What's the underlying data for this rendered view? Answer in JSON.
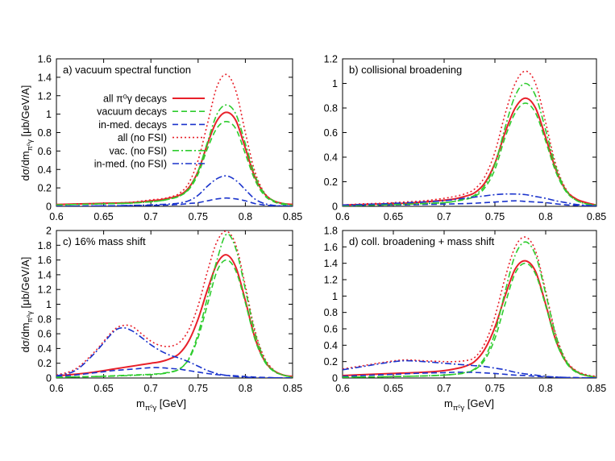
{
  "figure": {
    "shared_ylabel": "dσ/dm",
    "shared_ylabel_sub": "π⁰γ",
    "shared_ylabel_unit": " [μb/GeV/A]",
    "shared_xlabel": "m",
    "shared_xlabel_sub": "π⁰γ",
    "shared_xlabel_unit": " [GeV]"
  },
  "legend": {
    "entries": [
      {
        "label": "all π⁰γ decays",
        "color": "#e8202a",
        "dash": "solid"
      },
      {
        "label": "vacuum decays",
        "color": "#2ecc2e",
        "dash": "dashed"
      },
      {
        "label": "in-med. decays",
        "color": "#1a33cc",
        "dash": "dashed"
      },
      {
        "label": "all (no FSI)",
        "color": "#e8202a",
        "dash": "dotted"
      },
      {
        "label": "vac. (no FSI)",
        "color": "#2ecc2e",
        "dash": "dashdot"
      },
      {
        "label": "in-med. (no FSI)",
        "color": "#1a33cc",
        "dash": "dashdot"
      }
    ]
  },
  "chart_data": [
    {
      "type": "line",
      "title": "a) vacuum spectral function",
      "xlabel": "",
      "ylabel": "dσ/dm π⁰γ [μb/GeV/A]",
      "xlim": [
        0.6,
        0.85
      ],
      "ylim": [
        0,
        1.6
      ],
      "xticks": [
        "0.6",
        "0.65",
        "0.7",
        "0.75",
        "0.8",
        "0.85"
      ],
      "yticks": [
        "0",
        "0.2",
        "0.4",
        "0.6",
        "0.8",
        "1",
        "1.2",
        "1.4",
        "1.6"
      ],
      "x": [
        0.6,
        0.62,
        0.64,
        0.66,
        0.68,
        0.7,
        0.71,
        0.72,
        0.73,
        0.74,
        0.75,
        0.76,
        0.77,
        0.78,
        0.79,
        0.8,
        0.81,
        0.82,
        0.83,
        0.84,
        0.85
      ],
      "series": [
        {
          "name": "all π⁰γ decays",
          "color": "#e8202a",
          "dash": "solid",
          "values": [
            0.02,
            0.025,
            0.03,
            0.035,
            0.04,
            0.06,
            0.07,
            0.09,
            0.12,
            0.2,
            0.38,
            0.68,
            0.93,
            1.02,
            0.93,
            0.63,
            0.32,
            0.14,
            0.06,
            0.03,
            0.02
          ]
        },
        {
          "name": "vacuum decays",
          "color": "#2ecc2e",
          "dash": "dashed",
          "values": [
            0.015,
            0.02,
            0.025,
            0.03,
            0.035,
            0.05,
            0.06,
            0.08,
            0.11,
            0.18,
            0.35,
            0.63,
            0.85,
            0.92,
            0.84,
            0.57,
            0.29,
            0.12,
            0.05,
            0.02,
            0.01
          ]
        },
        {
          "name": "in-med. decays",
          "color": "#1a33cc",
          "dash": "dashed",
          "values": [
            0.0,
            0.002,
            0.004,
            0.006,
            0.008,
            0.01,
            0.012,
            0.015,
            0.02,
            0.03,
            0.04,
            0.06,
            0.08,
            0.09,
            0.08,
            0.06,
            0.03,
            0.015,
            0.006,
            0.003,
            0.001
          ]
        },
        {
          "name": "all (no FSI)",
          "color": "#e8202a",
          "dash": "dotted",
          "values": [
            0.02,
            0.025,
            0.03,
            0.035,
            0.045,
            0.07,
            0.08,
            0.1,
            0.14,
            0.25,
            0.5,
            0.9,
            1.3,
            1.43,
            1.25,
            0.8,
            0.38,
            0.15,
            0.06,
            0.03,
            0.02
          ]
        },
        {
          "name": "vac. (no FSI)",
          "color": "#2ecc2e",
          "dash": "dashdot",
          "values": [
            0.015,
            0.02,
            0.025,
            0.03,
            0.035,
            0.05,
            0.06,
            0.08,
            0.11,
            0.19,
            0.38,
            0.7,
            1.0,
            1.1,
            1.0,
            0.68,
            0.34,
            0.14,
            0.06,
            0.03,
            0.01
          ]
        },
        {
          "name": "in-med. (no FSI)",
          "color": "#1a33cc",
          "dash": "dashdot",
          "values": [
            0.0,
            0.002,
            0.004,
            0.006,
            0.01,
            0.015,
            0.02,
            0.025,
            0.035,
            0.06,
            0.12,
            0.22,
            0.3,
            0.33,
            0.28,
            0.18,
            0.08,
            0.03,
            0.01,
            0.005,
            0.002
          ]
        }
      ]
    },
    {
      "type": "line",
      "title": "b) collisional broadening",
      "xlabel": "",
      "ylabel": "",
      "xlim": [
        0.6,
        0.85
      ],
      "ylim": [
        0,
        1.2
      ],
      "xticks": [
        "0.6",
        "0.65",
        "0.7",
        "0.75",
        "0.8",
        "0.85"
      ],
      "yticks": [
        "0",
        "0.2",
        "0.4",
        "0.6",
        "0.8",
        "1",
        "1.2"
      ],
      "x": [
        0.6,
        0.62,
        0.64,
        0.66,
        0.68,
        0.7,
        0.71,
        0.72,
        0.73,
        0.74,
        0.75,
        0.76,
        0.77,
        0.78,
        0.79,
        0.8,
        0.81,
        0.82,
        0.83,
        0.84,
        0.85
      ],
      "series": [
        {
          "name": "all π⁰γ decays",
          "color": "#e8202a",
          "dash": "solid",
          "values": [
            0.01,
            0.015,
            0.02,
            0.025,
            0.035,
            0.05,
            0.06,
            0.08,
            0.11,
            0.19,
            0.35,
            0.6,
            0.8,
            0.88,
            0.8,
            0.56,
            0.3,
            0.13,
            0.06,
            0.03,
            0.01
          ]
        },
        {
          "name": "vacuum decays",
          "color": "#2ecc2e",
          "dash": "dashed",
          "values": [
            0.005,
            0.008,
            0.012,
            0.016,
            0.022,
            0.03,
            0.04,
            0.055,
            0.08,
            0.15,
            0.3,
            0.56,
            0.76,
            0.84,
            0.76,
            0.53,
            0.28,
            0.12,
            0.05,
            0.02,
            0.01
          ]
        },
        {
          "name": "in-med. decays",
          "color": "#1a33cc",
          "dash": "dashed",
          "values": [
            0.005,
            0.008,
            0.01,
            0.012,
            0.015,
            0.018,
            0.02,
            0.022,
            0.025,
            0.03,
            0.035,
            0.04,
            0.045,
            0.04,
            0.035,
            0.03,
            0.02,
            0.012,
            0.008,
            0.004,
            0.002
          ]
        },
        {
          "name": "all (no FSI)",
          "color": "#e8202a",
          "dash": "dotted",
          "values": [
            0.01,
            0.02,
            0.025,
            0.035,
            0.045,
            0.065,
            0.08,
            0.1,
            0.14,
            0.24,
            0.44,
            0.75,
            1.0,
            1.1,
            1.0,
            0.68,
            0.34,
            0.14,
            0.06,
            0.03,
            0.01
          ]
        },
        {
          "name": "vac. (no FSI)",
          "color": "#2ecc2e",
          "dash": "dashdot",
          "values": [
            0.005,
            0.008,
            0.012,
            0.016,
            0.022,
            0.03,
            0.04,
            0.06,
            0.09,
            0.17,
            0.34,
            0.64,
            0.9,
            1.0,
            0.9,
            0.62,
            0.32,
            0.13,
            0.05,
            0.02,
            0.01
          ]
        },
        {
          "name": "in-med. (no FSI)",
          "color": "#1a33cc",
          "dash": "dashdot",
          "values": [
            0.01,
            0.015,
            0.02,
            0.028,
            0.035,
            0.045,
            0.055,
            0.065,
            0.075,
            0.085,
            0.095,
            0.1,
            0.1,
            0.095,
            0.08,
            0.065,
            0.045,
            0.03,
            0.015,
            0.008,
            0.004
          ]
        }
      ]
    },
    {
      "type": "line",
      "title": "c) 16% mass shift",
      "xlabel": "m π⁰γ [GeV]",
      "ylabel": "dσ/dm π⁰γ [μb/GeV/A]",
      "xlim": [
        0.6,
        0.85
      ],
      "ylim": [
        0,
        2
      ],
      "xticks": [
        "0.6",
        "0.65",
        "0.7",
        "0.75",
        "0.8",
        "0.85"
      ],
      "yticks": [
        "0",
        "0.2",
        "0.4",
        "0.6",
        "0.8",
        "1",
        "1.2",
        "1.4",
        "1.6",
        "1.8",
        "2"
      ],
      "x": [
        0.6,
        0.62,
        0.64,
        0.66,
        0.67,
        0.68,
        0.69,
        0.7,
        0.71,
        0.72,
        0.73,
        0.74,
        0.75,
        0.76,
        0.77,
        0.78,
        0.79,
        0.8,
        0.81,
        0.82,
        0.83,
        0.84,
        0.85
      ],
      "series": [
        {
          "name": "all π⁰γ decays",
          "color": "#e8202a",
          "dash": "solid",
          "values": [
            0.03,
            0.05,
            0.08,
            0.12,
            0.14,
            0.16,
            0.18,
            0.2,
            0.22,
            0.26,
            0.33,
            0.5,
            0.8,
            1.2,
            1.55,
            1.67,
            1.5,
            1.05,
            0.55,
            0.24,
            0.1,
            0.04,
            0.02
          ]
        },
        {
          "name": "vacuum decays",
          "color": "#2ecc2e",
          "dash": "dashed",
          "values": [
            0.01,
            0.015,
            0.02,
            0.03,
            0.035,
            0.04,
            0.045,
            0.05,
            0.06,
            0.08,
            0.12,
            0.25,
            0.55,
            1.0,
            1.45,
            1.6,
            1.45,
            1.02,
            0.53,
            0.23,
            0.09,
            0.04,
            0.01
          ]
        },
        {
          "name": "in-med. decays",
          "color": "#1a33cc",
          "dash": "dashed",
          "values": [
            0.02,
            0.04,
            0.07,
            0.1,
            0.11,
            0.12,
            0.13,
            0.14,
            0.14,
            0.13,
            0.12,
            0.1,
            0.08,
            0.06,
            0.045,
            0.035,
            0.03,
            0.02,
            0.012,
            0.008,
            0.004,
            0.002,
            0.001
          ]
        },
        {
          "name": "all (no FSI)",
          "color": "#e8202a",
          "dash": "dotted",
          "values": [
            0.04,
            0.12,
            0.35,
            0.64,
            0.71,
            0.7,
            0.6,
            0.5,
            0.44,
            0.43,
            0.48,
            0.65,
            0.98,
            1.45,
            1.85,
            1.99,
            1.8,
            1.25,
            0.65,
            0.28,
            0.11,
            0.04,
            0.02
          ]
        },
        {
          "name": "vac. (no FSI)",
          "color": "#2ecc2e",
          "dash": "dashdot",
          "values": [
            0.01,
            0.015,
            0.02,
            0.025,
            0.03,
            0.035,
            0.04,
            0.045,
            0.055,
            0.075,
            0.12,
            0.26,
            0.6,
            1.1,
            1.6,
            1.95,
            1.75,
            1.2,
            0.62,
            0.26,
            0.1,
            0.04,
            0.01
          ]
        },
        {
          "name": "in-med. (no FSI)",
          "color": "#1a33cc",
          "dash": "dashdot",
          "values": [
            0.03,
            0.1,
            0.33,
            0.62,
            0.68,
            0.64,
            0.55,
            0.45,
            0.37,
            0.31,
            0.27,
            0.22,
            0.16,
            0.1,
            0.06,
            0.035,
            0.02,
            0.012,
            0.006,
            0.003,
            0.002,
            0.001,
            0.0
          ]
        }
      ]
    },
    {
      "type": "line",
      "title": "d) coll. broadening + mass shift",
      "xlabel": "m π⁰γ [GeV]",
      "ylabel": "",
      "xlim": [
        0.6,
        0.85
      ],
      "ylim": [
        0,
        1.8
      ],
      "xticks": [
        "0.6",
        "0.65",
        "0.7",
        "0.75",
        "0.8",
        "0.85"
      ],
      "yticks": [
        "0",
        "0.2",
        "0.4",
        "0.6",
        "0.8",
        "1",
        "1.2",
        "1.4",
        "1.6",
        "1.8"
      ],
      "x": [
        0.6,
        0.62,
        0.64,
        0.66,
        0.68,
        0.7,
        0.71,
        0.72,
        0.73,
        0.74,
        0.75,
        0.76,
        0.77,
        0.78,
        0.79,
        0.8,
        0.81,
        0.82,
        0.83,
        0.84,
        0.85
      ],
      "series": [
        {
          "name": "all π⁰γ decays",
          "color": "#e8202a",
          "dash": "solid",
          "values": [
            0.03,
            0.04,
            0.05,
            0.06,
            0.07,
            0.09,
            0.11,
            0.14,
            0.2,
            0.35,
            0.62,
            1.0,
            1.33,
            1.43,
            1.3,
            0.9,
            0.46,
            0.2,
            0.08,
            0.03,
            0.01
          ]
        },
        {
          "name": "vacuum decays",
          "color": "#2ecc2e",
          "dash": "dashed",
          "values": [
            0.01,
            0.012,
            0.015,
            0.02,
            0.025,
            0.035,
            0.045,
            0.06,
            0.1,
            0.22,
            0.48,
            0.9,
            1.28,
            1.4,
            1.27,
            0.88,
            0.45,
            0.19,
            0.07,
            0.03,
            0.01
          ]
        },
        {
          "name": "in-med. decays",
          "color": "#1a33cc",
          "dash": "dashed",
          "values": [
            0.02,
            0.03,
            0.04,
            0.05,
            0.06,
            0.065,
            0.07,
            0.07,
            0.068,
            0.062,
            0.055,
            0.045,
            0.035,
            0.03,
            0.02,
            0.015,
            0.01,
            0.006,
            0.004,
            0.002,
            0.001
          ]
        },
        {
          "name": "all (no FSI)",
          "color": "#e8202a",
          "dash": "dotted",
          "values": [
            0.11,
            0.15,
            0.19,
            0.22,
            0.21,
            0.2,
            0.2,
            0.21,
            0.25,
            0.42,
            0.75,
            1.22,
            1.6,
            1.72,
            1.55,
            1.06,
            0.53,
            0.22,
            0.09,
            0.04,
            0.02
          ]
        },
        {
          "name": "vac. (no FSI)",
          "color": "#2ecc2e",
          "dash": "dashdot",
          "values": [
            0.01,
            0.012,
            0.015,
            0.02,
            0.025,
            0.035,
            0.045,
            0.065,
            0.11,
            0.25,
            0.55,
            1.05,
            1.5,
            1.66,
            1.5,
            1.03,
            0.52,
            0.21,
            0.08,
            0.03,
            0.01
          ]
        },
        {
          "name": "in-med. (no FSI)",
          "color": "#1a33cc",
          "dash": "dashdot",
          "values": [
            0.1,
            0.14,
            0.18,
            0.21,
            0.2,
            0.18,
            0.17,
            0.16,
            0.15,
            0.14,
            0.12,
            0.1,
            0.07,
            0.05,
            0.035,
            0.02,
            0.012,
            0.007,
            0.004,
            0.002,
            0.001
          ]
        }
      ]
    }
  ]
}
